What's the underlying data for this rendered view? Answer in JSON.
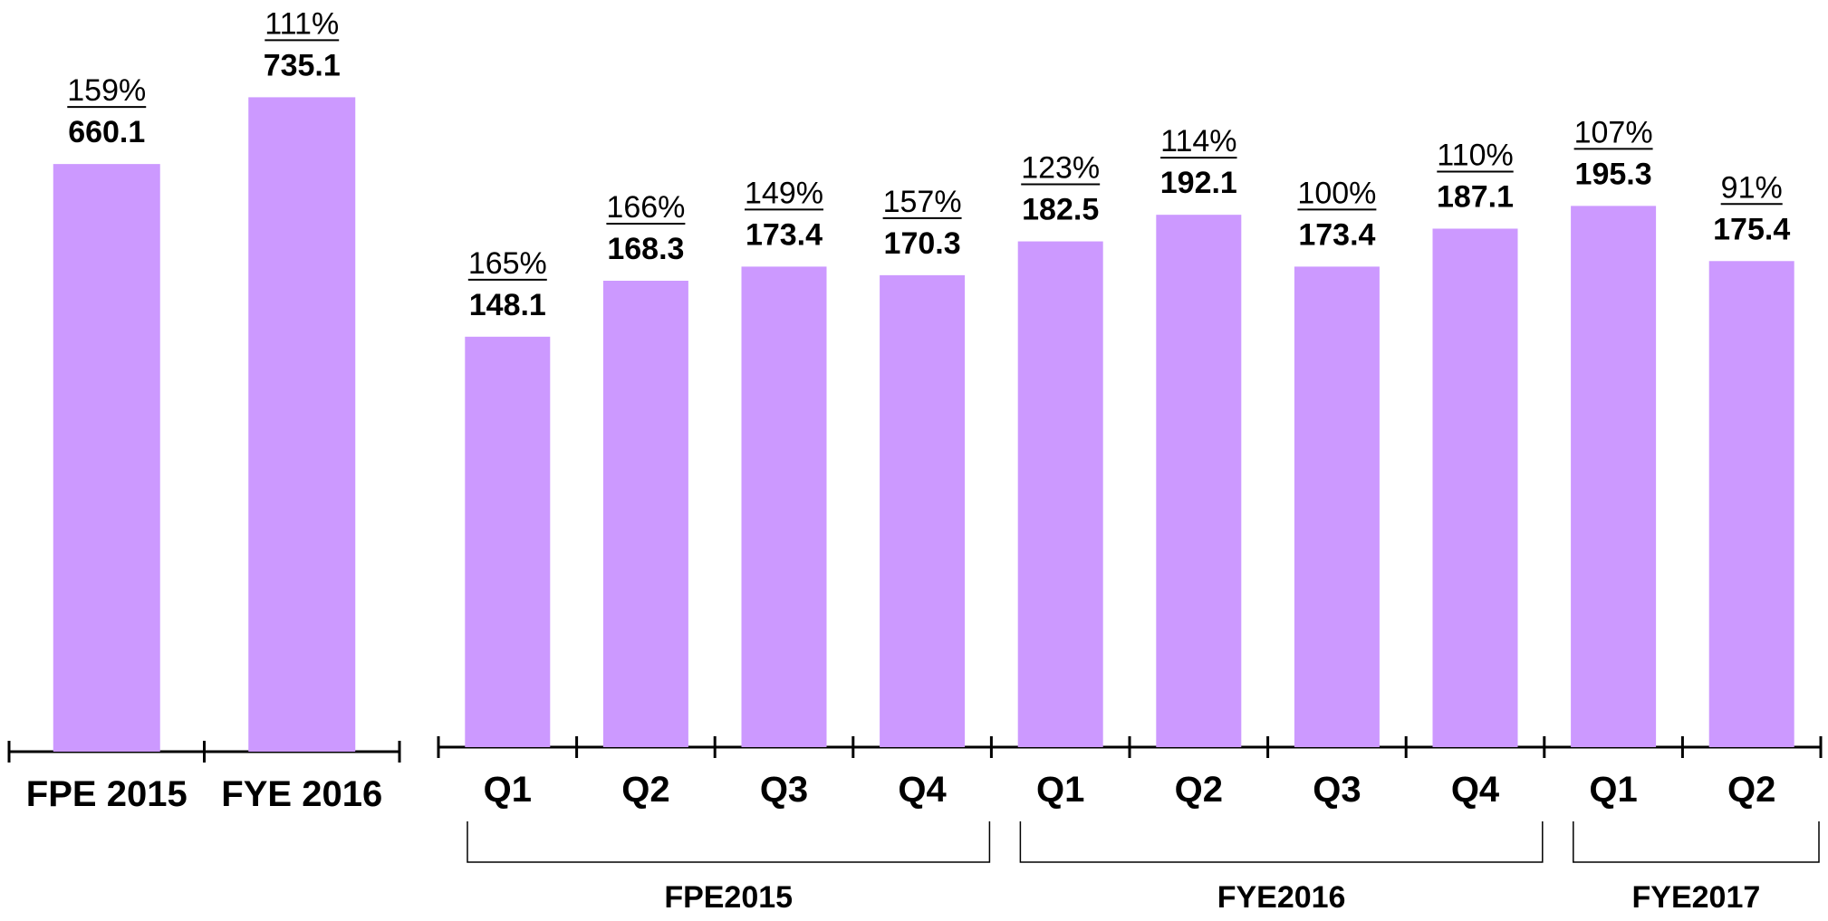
{
  "chart_data": [
    {
      "type": "bar",
      "color": "#cc99ff",
      "categories": [
        "FPE 2015",
        "FYE 2016"
      ],
      "values": [
        660.1,
        735.1
      ],
      "percent_labels": [
        "159%",
        "111%"
      ]
    },
    {
      "type": "grouped_bar",
      "color": "#cc99ff",
      "groups": [
        {
          "name": "FPE2015",
          "categories": [
            "Q1",
            "Q2",
            "Q3",
            "Q4"
          ]
        },
        {
          "name": "FYE2016",
          "categories": [
            "Q1",
            "Q2",
            "Q3",
            "Q4"
          ]
        },
        {
          "name": "FYE2017",
          "categories": [
            "Q1",
            "Q2"
          ]
        }
      ],
      "values": [
        148.1,
        168.3,
        173.4,
        170.3,
        182.5,
        192.1,
        173.4,
        187.1,
        195.3,
        175.4
      ],
      "percent_labels": [
        "165%",
        "166%",
        "149%",
        "157%",
        "123%",
        "114%",
        "100%",
        "110%",
        "107%",
        "91%"
      ]
    }
  ]
}
